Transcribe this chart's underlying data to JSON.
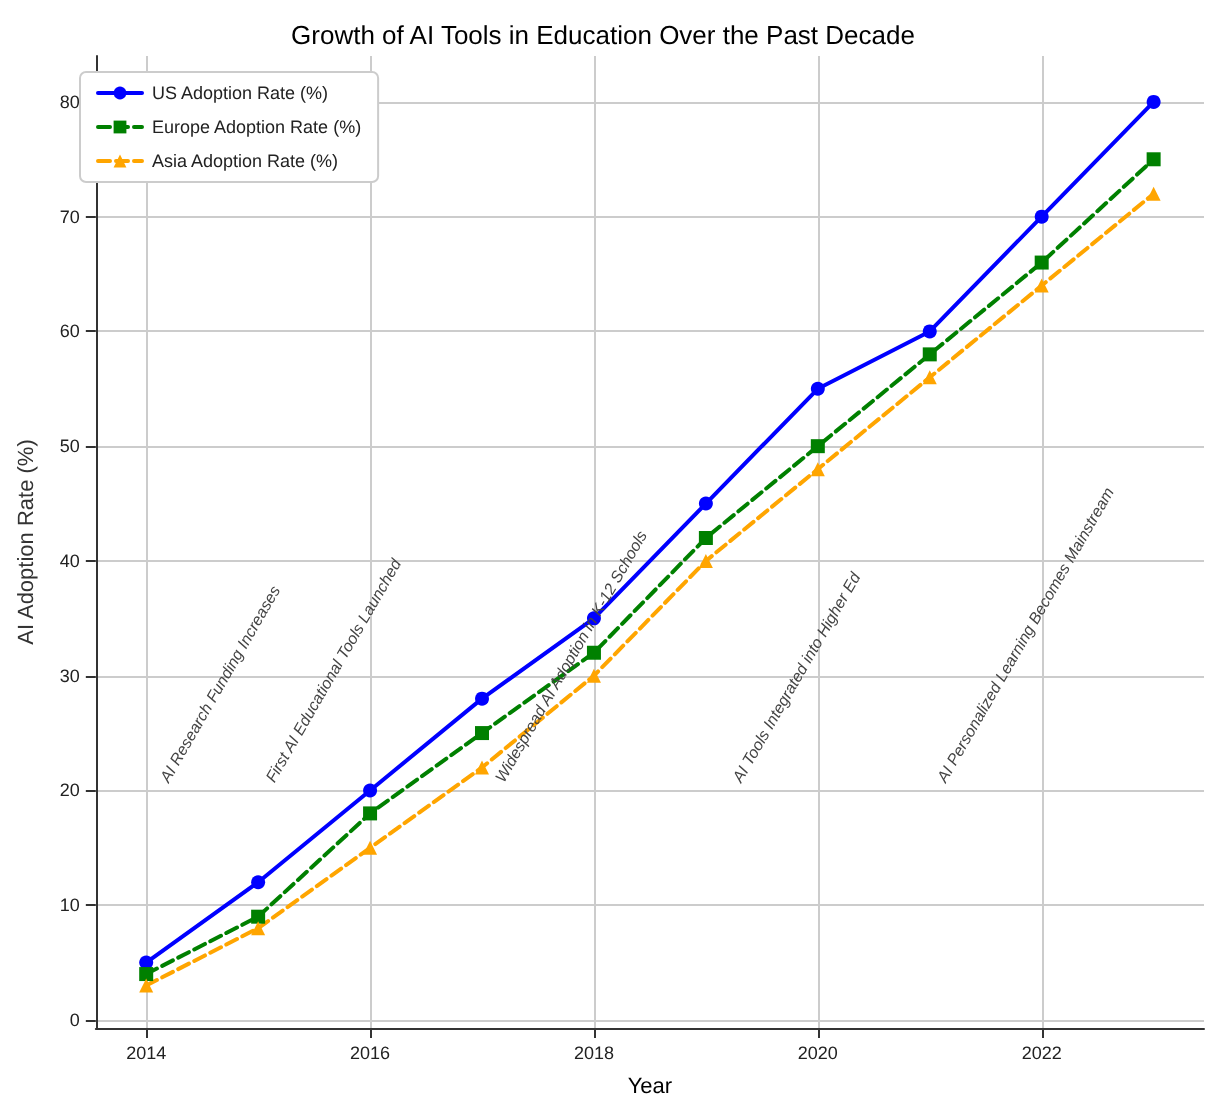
{
  "chart_data": {
    "type": "line",
    "title": "Growth of AI Tools in Education Over the Past Decade",
    "xlabel": "Year",
    "ylabel": "AI Adoption Rate (%)",
    "x": [
      2014,
      2015,
      2016,
      2017,
      2018,
      2019,
      2020,
      2021,
      2022,
      2023
    ],
    "series": [
      {
        "name": "US Adoption Rate (%)",
        "color": "#0000ff",
        "marker": "circle",
        "line_style": "solid",
        "values": [
          5,
          12,
          20,
          28,
          35,
          45,
          55,
          60,
          70,
          80
        ]
      },
      {
        "name": "Europe Adoption Rate (%)",
        "color": "#008000",
        "marker": "square",
        "line_style": "dashed",
        "values": [
          4,
          9,
          18,
          25,
          32,
          42,
          50,
          58,
          66,
          75
        ]
      },
      {
        "name": "Asia Adoption Rate (%)",
        "color": "#ffa500",
        "marker": "triangle",
        "line_style": "dashed",
        "values": [
          3,
          8,
          15,
          22,
          30,
          40,
          48,
          56,
          64,
          72
        ]
      }
    ],
    "xlim": [
      2013.55,
      2023.45
    ],
    "xticks": [
      2014,
      2016,
      2018,
      2020,
      2022
    ],
    "ylim": [
      -0.7,
      84
    ],
    "yticks": [
      0,
      10,
      20,
      30,
      40,
      50,
      60,
      70,
      80
    ],
    "grid": true,
    "legend": "top left",
    "annotations": [
      "AI Research Funding Increases",
      "First AI Educational Tools Launched",
      "Widespread AI Adoption in K-12 Schools",
      "AI Tools Integrated into Higher Ed",
      "AI Personalized Learning Becomes Mainstream"
    ]
  }
}
